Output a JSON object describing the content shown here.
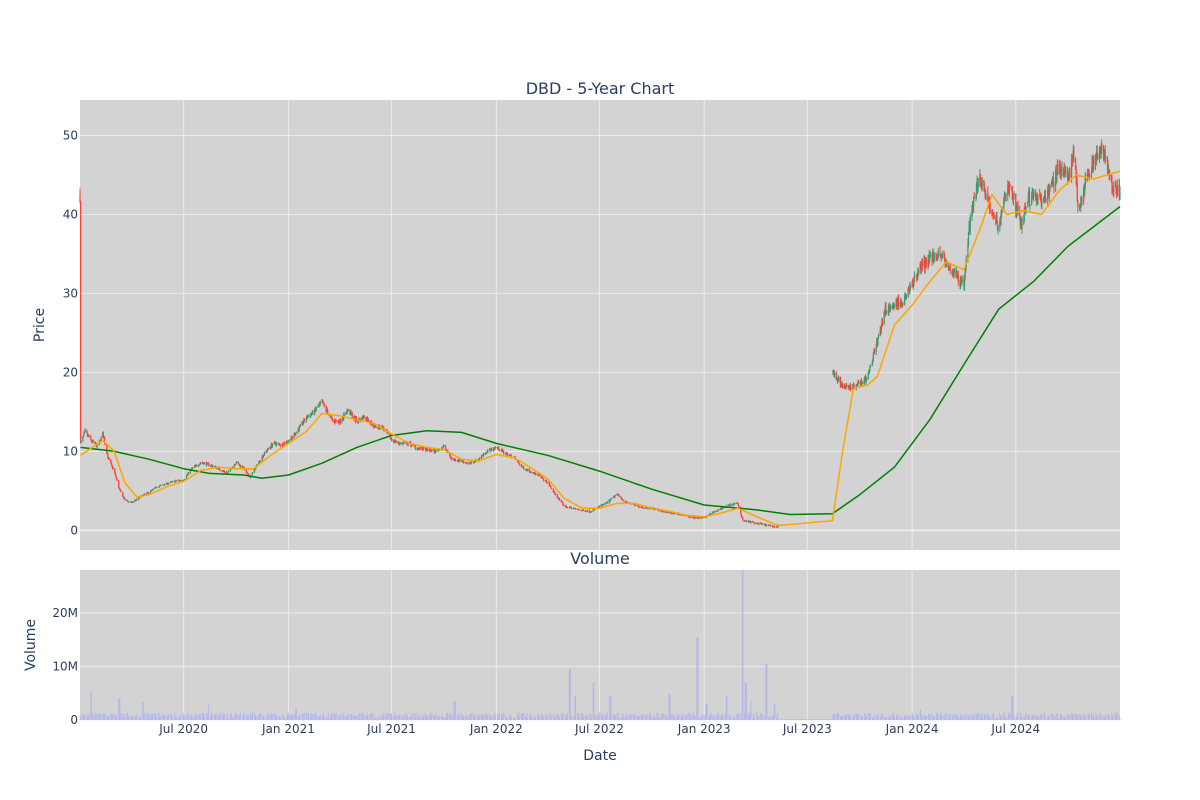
{
  "chart_data": [
    {
      "type": "candlestick",
      "title": "DBD - 5-Year Chart",
      "ylabel": "Price",
      "ylim": [
        -2.5,
        54.5
      ],
      "yticks": [
        0,
        10,
        20,
        30,
        40,
        50
      ],
      "grid": true,
      "background": "#d3d3d3",
      "colors": {
        "up": "#3d9970",
        "down": "#ff4136",
        "ma_short": "#ffa500",
        "ma_long": "#008000"
      },
      "xlim": [
        "2020-01-01",
        "2024-12-31"
      ],
      "xticks": [
        {
          "date": "2020-07-01",
          "label": "Jul 2020"
        },
        {
          "date": "2021-01-01",
          "label": "Jan 2021"
        },
        {
          "date": "2021-07-01",
          "label": "Jul 2021"
        },
        {
          "date": "2022-01-01",
          "label": "Jan 2022"
        },
        {
          "date": "2022-07-01",
          "label": "Jul 2022"
        },
        {
          "date": "2023-01-01",
          "label": "Jan 2023"
        },
        {
          "date": "2023-07-01",
          "label": "Jul 2023"
        },
        {
          "date": "2024-01-01",
          "label": "Jan 2024"
        },
        {
          "date": "2024-07-01",
          "label": "Jul 2024"
        }
      ],
      "price_path": [
        [
          "2020-01-02",
          11.0
        ],
        [
          "2020-01-10",
          12.5
        ],
        [
          "2020-01-20",
          11.4
        ],
        [
          "2020-02-01",
          10.6
        ],
        [
          "2020-02-10",
          12.2
        ],
        [
          "2020-02-20",
          9.0
        ],
        [
          "2020-03-01",
          7.5
        ],
        [
          "2020-03-10",
          5.2
        ],
        [
          "2020-03-20",
          3.8
        ],
        [
          "2020-04-01",
          3.5
        ],
        [
          "2020-04-15",
          4.2
        ],
        [
          "2020-05-01",
          4.8
        ],
        [
          "2020-05-15",
          5.5
        ],
        [
          "2020-06-01",
          5.9
        ],
        [
          "2020-06-15",
          6.2
        ],
        [
          "2020-07-01",
          6.4
        ],
        [
          "2020-07-15",
          7.8
        ],
        [
          "2020-08-01",
          8.6
        ],
        [
          "2020-08-15",
          8.3
        ],
        [
          "2020-09-01",
          7.8
        ],
        [
          "2020-09-15",
          7.2
        ],
        [
          "2020-10-01",
          8.6
        ],
        [
          "2020-10-15",
          7.8
        ],
        [
          "2020-10-25",
          6.6
        ],
        [
          "2020-11-05",
          8.0
        ],
        [
          "2020-11-20",
          9.8
        ],
        [
          "2020-12-05",
          11.0
        ],
        [
          "2020-12-20",
          10.8
        ],
        [
          "2021-01-05",
          11.5
        ],
        [
          "2021-01-15",
          12.5
        ],
        [
          "2021-02-01",
          14.2
        ],
        [
          "2021-02-15",
          15.0
        ],
        [
          "2021-03-01",
          16.2
        ],
        [
          "2021-03-10",
          15.0
        ],
        [
          "2021-03-20",
          13.8
        ],
        [
          "2021-04-01",
          13.8
        ],
        [
          "2021-04-15",
          15.2
        ],
        [
          "2021-05-01",
          13.8
        ],
        [
          "2021-05-15",
          14.4
        ],
        [
          "2021-06-01",
          13.2
        ],
        [
          "2021-06-15",
          13.0
        ],
        [
          "2021-07-01",
          11.5
        ],
        [
          "2021-07-15",
          11.0
        ],
        [
          "2021-08-01",
          11.0
        ],
        [
          "2021-08-15",
          10.4
        ],
        [
          "2021-09-01",
          10.2
        ],
        [
          "2021-09-15",
          10.0
        ],
        [
          "2021-10-01",
          10.6
        ],
        [
          "2021-10-15",
          9.0
        ],
        [
          "2021-11-01",
          8.8
        ],
        [
          "2021-11-15",
          8.4
        ],
        [
          "2021-12-01",
          9.0
        ],
        [
          "2021-12-15",
          10.0
        ],
        [
          "2022-01-01",
          10.5
        ],
        [
          "2022-01-15",
          9.8
        ],
        [
          "2022-02-01",
          9.2
        ],
        [
          "2022-02-15",
          8.0
        ],
        [
          "2022-03-01",
          7.5
        ],
        [
          "2022-03-15",
          7.0
        ],
        [
          "2022-04-01",
          6.0
        ],
        [
          "2022-04-15",
          4.5
        ],
        [
          "2022-05-01",
          3.0
        ],
        [
          "2022-05-15",
          2.8
        ],
        [
          "2022-06-01",
          2.5
        ],
        [
          "2022-06-15",
          2.4
        ],
        [
          "2022-07-01",
          3.0
        ],
        [
          "2022-07-15",
          3.5
        ],
        [
          "2022-08-01",
          4.6
        ],
        [
          "2022-08-15",
          3.6
        ],
        [
          "2022-09-01",
          3.2
        ],
        [
          "2022-09-15",
          2.9
        ],
        [
          "2022-10-01",
          2.8
        ],
        [
          "2022-10-15",
          2.5
        ],
        [
          "2022-11-01",
          2.2
        ],
        [
          "2022-11-15",
          2.1
        ],
        [
          "2022-12-01",
          1.8
        ],
        [
          "2022-12-15",
          1.6
        ],
        [
          "2023-01-01",
          1.6
        ],
        [
          "2023-01-15",
          2.2
        ],
        [
          "2023-02-01",
          2.8
        ],
        [
          "2023-02-15",
          3.2
        ],
        [
          "2023-03-01",
          3.4
        ],
        [
          "2023-03-10",
          1.2
        ],
        [
          "2023-03-20",
          1.1
        ],
        [
          "2023-04-01",
          0.9
        ],
        [
          "2023-04-15",
          0.7
        ],
        [
          "2023-05-01",
          0.5
        ],
        [
          "2023-05-10",
          0.4
        ],
        [
          "2023-08-15",
          20.0
        ],
        [
          "2023-08-25",
          19.0
        ],
        [
          "2023-09-01",
          18.0
        ],
        [
          "2023-09-15",
          18.2
        ],
        [
          "2023-10-01",
          18.5
        ],
        [
          "2023-10-15",
          19.5
        ],
        [
          "2023-11-01",
          24.0
        ],
        [
          "2023-11-15",
          28.0
        ],
        [
          "2023-12-01",
          28.5
        ],
        [
          "2023-12-15",
          29.0
        ],
        [
          "2024-01-01",
          31.0
        ],
        [
          "2024-01-15",
          33.0
        ],
        [
          "2024-02-01",
          34.5
        ],
        [
          "2024-02-15",
          35.0
        ],
        [
          "2024-03-01",
          34.0
        ],
        [
          "2024-03-15",
          32.5
        ],
        [
          "2024-04-01",
          31.0
        ],
        [
          "2024-04-10",
          38.0
        ],
        [
          "2024-04-20",
          43.0
        ],
        [
          "2024-05-01",
          44.5
        ],
        [
          "2024-05-10",
          42.5
        ],
        [
          "2024-05-20",
          40.0
        ],
        [
          "2024-06-01",
          38.5
        ],
        [
          "2024-06-10",
          41.5
        ],
        [
          "2024-06-20",
          43.8
        ],
        [
          "2024-07-01",
          41.0
        ],
        [
          "2024-07-10",
          38.5
        ],
        [
          "2024-07-20",
          41.5
        ],
        [
          "2024-08-01",
          42.5
        ],
        [
          "2024-08-15",
          41.5
        ],
        [
          "2024-09-01",
          43.5
        ],
        [
          "2024-09-15",
          46.0
        ],
        [
          "2024-10-01",
          44.5
        ],
        [
          "2024-10-10",
          48.0
        ],
        [
          "2024-10-20",
          40.0
        ],
        [
          "2024-11-01",
          44.5
        ],
        [
          "2024-11-15",
          47.0
        ],
        [
          "2024-12-01",
          48.5
        ],
        [
          "2024-12-15",
          44.0
        ],
        [
          "2024-12-31",
          42.5
        ]
      ],
      "trading_gaps": [
        [
          "2023-05-12",
          "2023-08-14"
        ]
      ],
      "ma_short": [
        [
          "2020-01-02",
          9.5
        ],
        [
          "2020-02-10",
          11.4
        ],
        [
          "2020-03-01",
          10.0
        ],
        [
          "2020-03-20",
          6.0
        ],
        [
          "2020-04-10",
          4.2
        ],
        [
          "2020-05-01",
          4.5
        ],
        [
          "2020-06-01",
          5.5
        ],
        [
          "2020-07-01",
          6.2
        ],
        [
          "2020-08-01",
          7.6
        ],
        [
          "2020-09-01",
          8.0
        ],
        [
          "2020-10-01",
          7.8
        ],
        [
          "2020-11-01",
          7.8
        ],
        [
          "2020-12-01",
          9.5
        ],
        [
          "2021-01-01",
          11.0
        ],
        [
          "2021-02-01",
          12.5
        ],
        [
          "2021-03-01",
          14.8
        ],
        [
          "2021-04-01",
          14.5
        ],
        [
          "2021-05-01",
          14.0
        ],
        [
          "2021-06-01",
          13.5
        ],
        [
          "2021-07-01",
          12.2
        ],
        [
          "2021-08-01",
          11.0
        ],
        [
          "2021-09-01",
          10.5
        ],
        [
          "2021-10-01",
          10.2
        ],
        [
          "2021-11-01",
          9.0
        ],
        [
          "2021-12-01",
          8.8
        ],
        [
          "2022-01-01",
          9.6
        ],
        [
          "2022-02-01",
          9.2
        ],
        [
          "2022-03-01",
          8.0
        ],
        [
          "2022-04-01",
          6.5
        ],
        [
          "2022-05-01",
          4.0
        ],
        [
          "2022-06-01",
          2.8
        ],
        [
          "2022-07-01",
          2.8
        ],
        [
          "2022-08-01",
          3.4
        ],
        [
          "2022-09-01",
          3.4
        ],
        [
          "2022-10-01",
          2.8
        ],
        [
          "2022-11-01",
          2.4
        ],
        [
          "2022-12-01",
          1.9
        ],
        [
          "2023-01-01",
          1.7
        ],
        [
          "2023-02-01",
          2.2
        ],
        [
          "2023-03-01",
          2.8
        ],
        [
          "2023-04-01",
          1.8
        ],
        [
          "2023-05-10",
          0.6
        ],
        [
          "2023-08-14",
          1.2
        ],
        [
          "2023-09-01",
          10.0
        ],
        [
          "2023-09-20",
          18.0
        ],
        [
          "2023-10-15",
          18.4
        ],
        [
          "2023-11-01",
          19.5
        ],
        [
          "2023-12-01",
          26.0
        ],
        [
          "2024-01-01",
          28.5
        ],
        [
          "2024-02-01",
          31.5
        ],
        [
          "2024-03-01",
          34.0
        ],
        [
          "2024-04-01",
          33.0
        ],
        [
          "2024-05-01",
          38.5
        ],
        [
          "2024-05-20",
          42.5
        ],
        [
          "2024-06-15",
          40.0
        ],
        [
          "2024-07-15",
          40.5
        ],
        [
          "2024-08-15",
          40.0
        ],
        [
          "2024-09-15",
          43.0
        ],
        [
          "2024-10-15",
          45.0
        ],
        [
          "2024-11-15",
          44.5
        ],
        [
          "2024-12-31",
          45.5
        ]
      ],
      "ma_long": [
        [
          "2020-01-02",
          10.5
        ],
        [
          "2020-03-01",
          10.0
        ],
        [
          "2020-05-01",
          9.0
        ],
        [
          "2020-07-01",
          7.8
        ],
        [
          "2020-08-15",
          7.2
        ],
        [
          "2020-10-15",
          7.0
        ],
        [
          "2020-11-15",
          6.6
        ],
        [
          "2021-01-01",
          7.0
        ],
        [
          "2021-03-01",
          8.5
        ],
        [
          "2021-05-01",
          10.5
        ],
        [
          "2021-07-01",
          12.0
        ],
        [
          "2021-09-01",
          12.6
        ],
        [
          "2021-11-01",
          12.4
        ],
        [
          "2022-01-01",
          11.0
        ],
        [
          "2022-04-01",
          9.5
        ],
        [
          "2022-07-01",
          7.5
        ],
        [
          "2022-10-01",
          5.2
        ],
        [
          "2023-01-01",
          3.2
        ],
        [
          "2023-04-01",
          2.6
        ],
        [
          "2023-06-01",
          2.0
        ],
        [
          "2023-08-14",
          2.1
        ],
        [
          "2023-10-01",
          4.5
        ],
        [
          "2023-12-01",
          8.0
        ],
        [
          "2024-02-01",
          14.0
        ],
        [
          "2024-04-01",
          21.0
        ],
        [
          "2024-06-01",
          28.0
        ],
        [
          "2024-08-01",
          31.5
        ],
        [
          "2024-10-01",
          36.0
        ],
        [
          "2024-12-31",
          41.0
        ]
      ]
    },
    {
      "type": "bar",
      "title": "Volume",
      "xlabel": "Date",
      "ylabel": "Volume",
      "ylim": [
        0,
        28000000
      ],
      "yticks": [
        {
          "value": 0,
          "label": "0"
        },
        {
          "value": 10000000,
          "label": "10M"
        },
        {
          "value": 20000000,
          "label": "20M"
        }
      ],
      "bar_color": "#b8b8e8",
      "background": "#d3d3d3",
      "baseline_volume": 700000,
      "spikes": [
        [
          "2020-01-20",
          5200000
        ],
        [
          "2020-03-10",
          4000000
        ],
        [
          "2020-04-20",
          3500000
        ],
        [
          "2020-08-15",
          3200000
        ],
        [
          "2021-01-15",
          2000000
        ],
        [
          "2021-10-20",
          3500000
        ],
        [
          "2022-05-10",
          9500000
        ],
        [
          "2022-05-20",
          4500000
        ],
        [
          "2022-06-20",
          7000000
        ],
        [
          "2022-07-20",
          4500000
        ],
        [
          "2022-11-01",
          4800000
        ],
        [
          "2022-12-20",
          15500000
        ],
        [
          "2023-01-05",
          3000000
        ],
        [
          "2023-02-10",
          4500000
        ],
        [
          "2023-03-10",
          28000000
        ],
        [
          "2023-03-15",
          7000000
        ],
        [
          "2023-03-25",
          3500000
        ],
        [
          "2023-04-20",
          10500000
        ],
        [
          "2023-05-05",
          3000000
        ],
        [
          "2024-01-15",
          2000000
        ],
        [
          "2024-06-25",
          4500000
        ]
      ]
    }
  ]
}
